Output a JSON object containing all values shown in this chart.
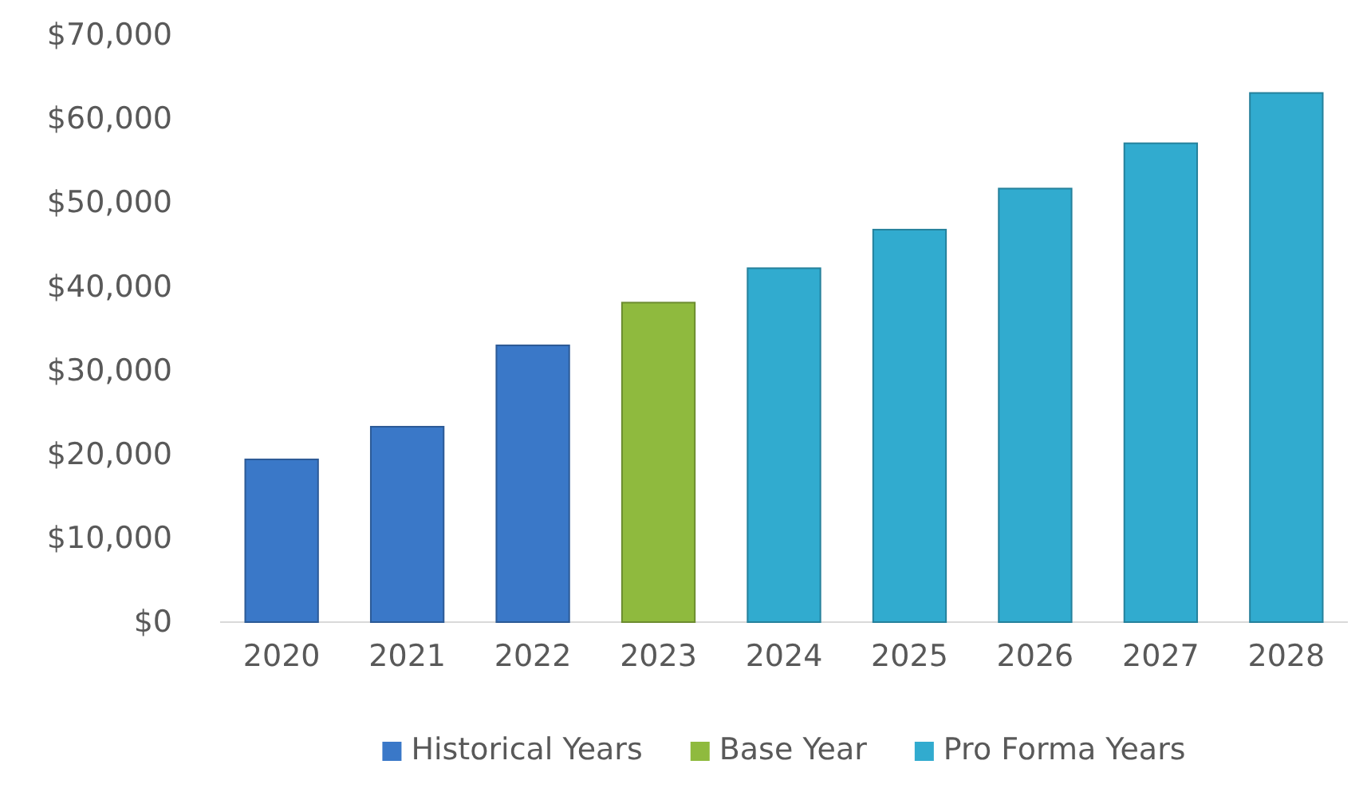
{
  "chart_data": {
    "type": "bar",
    "categories": [
      "2020",
      "2021",
      "2022",
      "2023",
      "2024",
      "2025",
      "2026",
      "2027",
      "2028"
    ],
    "series": [
      {
        "name": "Historical Years",
        "color": "#3a78c8",
        "values": [
          19400,
          23300,
          33000,
          null,
          null,
          null,
          null,
          null,
          null
        ]
      },
      {
        "name": "Base Year",
        "color": "#8fba3e",
        "values": [
          null,
          null,
          null,
          38100,
          null,
          null,
          null,
          null,
          null
        ]
      },
      {
        "name": "Pro Forma Years",
        "color": "#31abcf",
        "values": [
          null,
          null,
          null,
          null,
          42200,
          46800,
          51700,
          57100,
          63100
        ]
      }
    ],
    "ylim": [
      0,
      70000
    ],
    "yticks": [
      {
        "value": 0,
        "label": "$0"
      },
      {
        "value": 10000,
        "label": "$10,000"
      },
      {
        "value": 20000,
        "label": "$20,000"
      },
      {
        "value": 30000,
        "label": "$30,000"
      },
      {
        "value": 40000,
        "label": "$40,000"
      },
      {
        "value": 50000,
        "label": "$50,000"
      },
      {
        "value": 60000,
        "label": "$60,000"
      },
      {
        "value": 70000,
        "label": "$70,000"
      }
    ],
    "grid": false,
    "legend": "bottom"
  }
}
